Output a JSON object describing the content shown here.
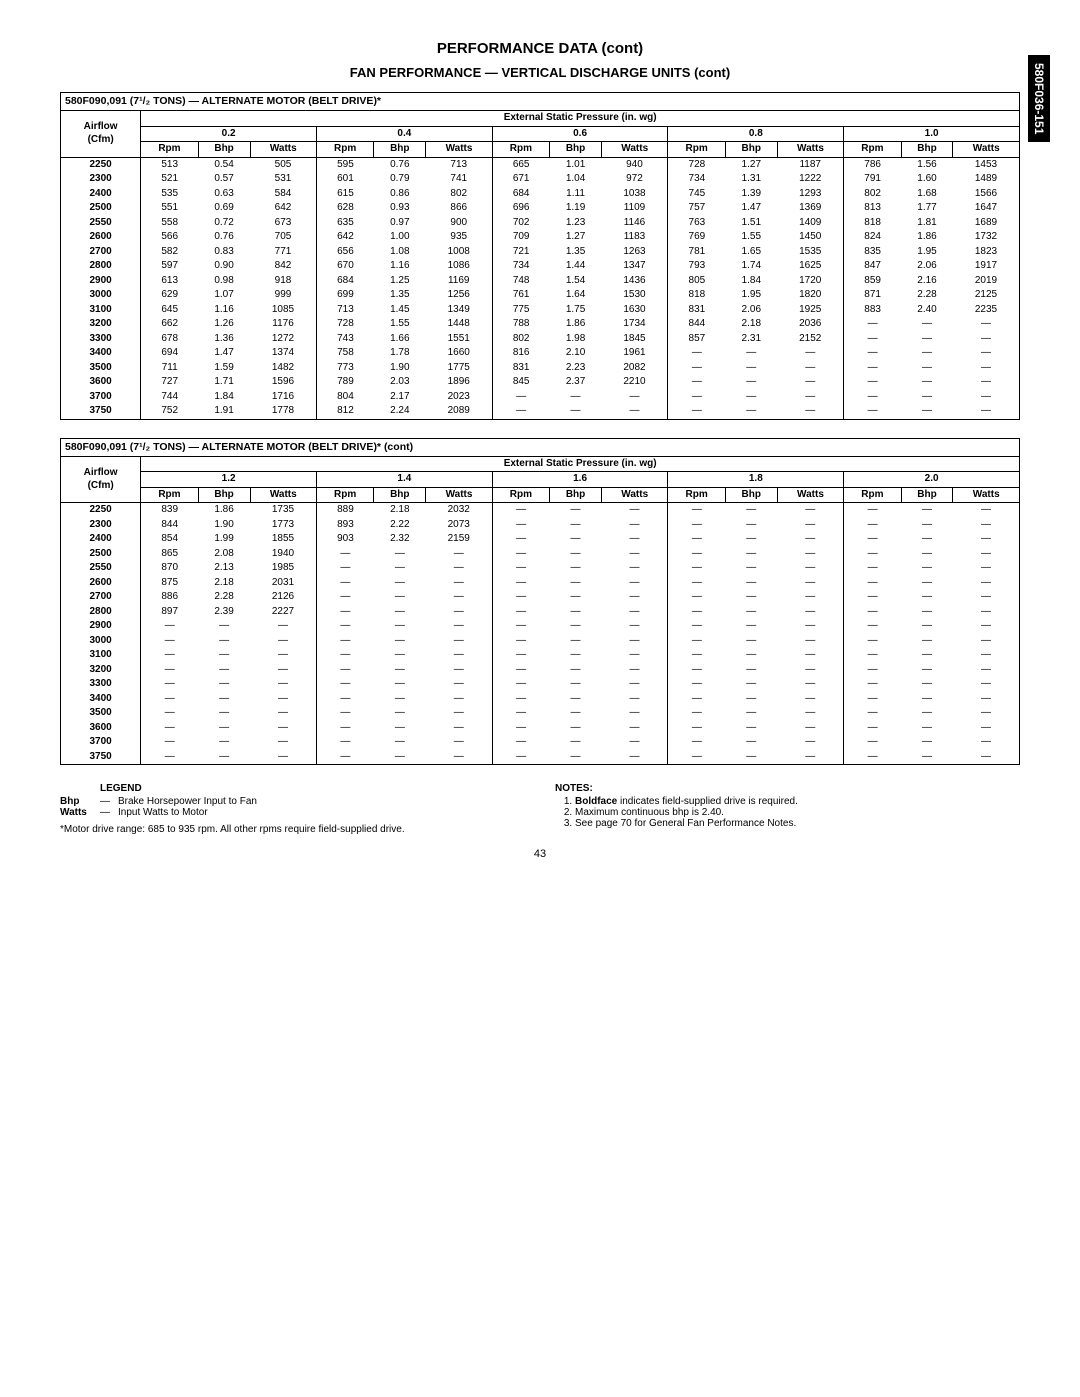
{
  "sideTab": "580F036-151",
  "pageTitle": "PERFORMANCE DATA (cont)",
  "subTitle": "FAN PERFORMANCE — VERTICAL DISCHARGE UNITS (cont)",
  "espHeader": "External Static Pressure (in. wg)",
  "airflowLabel": "Airflow (Cfm)",
  "colTriplet": [
    "Rpm",
    "Bhp",
    "Watts"
  ],
  "table1": {
    "caption": "580F090,091 (7¹/₂ TONS) — ALTERNATE MOTOR (BELT DRIVE)*",
    "pressures": [
      "0.2",
      "0.4",
      "0.6",
      "0.8",
      "1.0"
    ],
    "airflow": [
      "2250",
      "2300",
      "2400",
      "2500",
      "2550",
      "2600",
      "2700",
      "2800",
      "2900",
      "3000",
      "3100",
      "3200",
      "3300",
      "3400",
      "3500",
      "3600",
      "3700",
      "3750"
    ],
    "rows": [
      [
        "513",
        "0.54",
        "505",
        "595",
        "0.76",
        "713",
        "665",
        "1.01",
        "940",
        "728",
        "1.27",
        "1187",
        "786",
        "1.56",
        "1453"
      ],
      [
        "521",
        "0.57",
        "531",
        "601",
        "0.79",
        "741",
        "671",
        "1.04",
        "972",
        "734",
        "1.31",
        "1222",
        "791",
        "1.60",
        "1489"
      ],
      [
        "535",
        "0.63",
        "584",
        "615",
        "0.86",
        "802",
        "684",
        "1.11",
        "1038",
        "745",
        "1.39",
        "1293",
        "802",
        "1.68",
        "1566"
      ],
      [
        "551",
        "0.69",
        "642",
        "628",
        "0.93",
        "866",
        "696",
        "1.19",
        "1109",
        "757",
        "1.47",
        "1369",
        "813",
        "1.77",
        "1647"
      ],
      [
        "558",
        "0.72",
        "673",
        "635",
        "0.97",
        "900",
        "702",
        "1.23",
        "1146",
        "763",
        "1.51",
        "1409",
        "818",
        "1.81",
        "1689"
      ],
      [
        "566",
        "0.76",
        "705",
        "642",
        "1.00",
        "935",
        "709",
        "1.27",
        "1183",
        "769",
        "1.55",
        "1450",
        "824",
        "1.86",
        "1732"
      ],
      [
        "582",
        "0.83",
        "771",
        "656",
        "1.08",
        "1008",
        "721",
        "1.35",
        "1263",
        "781",
        "1.65",
        "1535",
        "835",
        "1.95",
        "1823"
      ],
      [
        "597",
        "0.90",
        "842",
        "670",
        "1.16",
        "1086",
        "734",
        "1.44",
        "1347",
        "793",
        "1.74",
        "1625",
        "847",
        "2.06",
        "1917"
      ],
      [
        "613",
        "0.98",
        "918",
        "684",
        "1.25",
        "1169",
        "748",
        "1.54",
        "1436",
        "805",
        "1.84",
        "1720",
        "859",
        "2.16",
        "2019"
      ],
      [
        "629",
        "1.07",
        "999",
        "699",
        "1.35",
        "1256",
        "761",
        "1.64",
        "1530",
        "818",
        "1.95",
        "1820",
        "871",
        "2.28",
        "2125"
      ],
      [
        "645",
        "1.16",
        "1085",
        "713",
        "1.45",
        "1349",
        "775",
        "1.75",
        "1630",
        "831",
        "2.06",
        "1925",
        "883",
        "2.40",
        "2235"
      ],
      [
        "662",
        "1.26",
        "1176",
        "728",
        "1.55",
        "1448",
        "788",
        "1.86",
        "1734",
        "844",
        "2.18",
        "2036",
        "—",
        "—",
        "—"
      ],
      [
        "678",
        "1.36",
        "1272",
        "743",
        "1.66",
        "1551",
        "802",
        "1.98",
        "1845",
        "857",
        "2.31",
        "2152",
        "—",
        "—",
        "—"
      ],
      [
        "694",
        "1.47",
        "1374",
        "758",
        "1.78",
        "1660",
        "816",
        "2.10",
        "1961",
        "—",
        "—",
        "—",
        "—",
        "—",
        "—"
      ],
      [
        "711",
        "1.59",
        "1482",
        "773",
        "1.90",
        "1775",
        "831",
        "2.23",
        "2082",
        "—",
        "—",
        "—",
        "—",
        "—",
        "—"
      ],
      [
        "727",
        "1.71",
        "1596",
        "789",
        "2.03",
        "1896",
        "845",
        "2.37",
        "2210",
        "—",
        "—",
        "—",
        "—",
        "—",
        "—"
      ],
      [
        "744",
        "1.84",
        "1716",
        "804",
        "2.17",
        "2023",
        "—",
        "—",
        "—",
        "—",
        "—",
        "—",
        "—",
        "—",
        "—"
      ],
      [
        "752",
        "1.91",
        "1778",
        "812",
        "2.24",
        "2089",
        "—",
        "—",
        "—",
        "—",
        "—",
        "—",
        "—",
        "—",
        "—"
      ]
    ]
  },
  "table2": {
    "caption": "580F090,091 (7¹/₂ TONS) — ALTERNATE MOTOR (BELT DRIVE)* (cont)",
    "pressures": [
      "1.2",
      "1.4",
      "1.6",
      "1.8",
      "2.0"
    ],
    "airflow": [
      "2250",
      "2300",
      "2400",
      "2500",
      "2550",
      "2600",
      "2700",
      "2800",
      "2900",
      "3000",
      "3100",
      "3200",
      "3300",
      "3400",
      "3500",
      "3600",
      "3700",
      "3750"
    ],
    "rows": [
      [
        "839",
        "1.86",
        "1735",
        "889",
        "2.18",
        "2032",
        "—",
        "—",
        "—",
        "—",
        "—",
        "—",
        "—",
        "—",
        "—"
      ],
      [
        "844",
        "1.90",
        "1773",
        "893",
        "2.22",
        "2073",
        "—",
        "—",
        "—",
        "—",
        "—",
        "—",
        "—",
        "—",
        "—"
      ],
      [
        "854",
        "1.99",
        "1855",
        "903",
        "2.32",
        "2159",
        "—",
        "—",
        "—",
        "—",
        "—",
        "—",
        "—",
        "—",
        "—"
      ],
      [
        "865",
        "2.08",
        "1940",
        "—",
        "—",
        "—",
        "—",
        "—",
        "—",
        "—",
        "—",
        "—",
        "—",
        "—",
        "—"
      ],
      [
        "870",
        "2.13",
        "1985",
        "—",
        "—",
        "—",
        "—",
        "—",
        "—",
        "—",
        "—",
        "—",
        "—",
        "—",
        "—"
      ],
      [
        "875",
        "2.18",
        "2031",
        "—",
        "—",
        "—",
        "—",
        "—",
        "—",
        "—",
        "—",
        "—",
        "—",
        "—",
        "—"
      ],
      [
        "886",
        "2.28",
        "2126",
        "—",
        "—",
        "—",
        "—",
        "—",
        "—",
        "—",
        "—",
        "—",
        "—",
        "—",
        "—"
      ],
      [
        "897",
        "2.39",
        "2227",
        "—",
        "—",
        "—",
        "—",
        "—",
        "—",
        "—",
        "—",
        "—",
        "—",
        "—",
        "—"
      ],
      [
        "—",
        "—",
        "—",
        "—",
        "—",
        "—",
        "—",
        "—",
        "—",
        "—",
        "—",
        "—",
        "—",
        "—",
        "—"
      ],
      [
        "—",
        "—",
        "—",
        "—",
        "—",
        "—",
        "—",
        "—",
        "—",
        "—",
        "—",
        "—",
        "—",
        "—",
        "—"
      ],
      [
        "—",
        "—",
        "—",
        "—",
        "—",
        "—",
        "—",
        "—",
        "—",
        "—",
        "—",
        "—",
        "—",
        "—",
        "—"
      ],
      [
        "—",
        "—",
        "—",
        "—",
        "—",
        "—",
        "—",
        "—",
        "—",
        "—",
        "—",
        "—",
        "—",
        "—",
        "—"
      ],
      [
        "—",
        "—",
        "—",
        "—",
        "—",
        "—",
        "—",
        "—",
        "—",
        "—",
        "—",
        "—",
        "—",
        "—",
        "—"
      ],
      [
        "—",
        "—",
        "—",
        "—",
        "—",
        "—",
        "—",
        "—",
        "—",
        "—",
        "—",
        "—",
        "—",
        "—",
        "—"
      ],
      [
        "—",
        "—",
        "—",
        "—",
        "—",
        "—",
        "—",
        "—",
        "—",
        "—",
        "—",
        "—",
        "—",
        "—",
        "—"
      ],
      [
        "—",
        "—",
        "—",
        "—",
        "—",
        "—",
        "—",
        "—",
        "—",
        "—",
        "—",
        "—",
        "—",
        "—",
        "—"
      ],
      [
        "—",
        "—",
        "—",
        "—",
        "—",
        "—",
        "—",
        "—",
        "—",
        "—",
        "—",
        "—",
        "—",
        "—",
        "—"
      ],
      [
        "—",
        "—",
        "—",
        "—",
        "—",
        "—",
        "—",
        "—",
        "—",
        "—",
        "—",
        "—",
        "—",
        "—",
        "—"
      ]
    ]
  },
  "legend": {
    "title": "LEGEND",
    "items": [
      {
        "key": "Bhp",
        "text": "Brake Horsepower Input to Fan"
      },
      {
        "key": "Watts",
        "text": "Input Watts to Motor"
      }
    ]
  },
  "footnote": "*Motor drive range: 685 to 935 rpm. All other rpms require field-supplied drive.",
  "notes": {
    "title": "NOTES:",
    "items": [
      {
        "prefix": "Boldface",
        "rest": " indicates field-supplied drive is required."
      },
      {
        "text": "Maximum continuous bhp is 2.40."
      },
      {
        "text": "See page 70 for General Fan Performance Notes."
      }
    ]
  },
  "pageNumber": "43"
}
